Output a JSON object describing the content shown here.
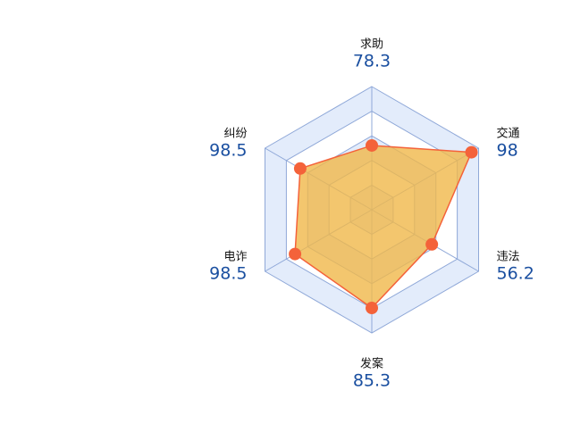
{
  "chart_data": {
    "type": "radar",
    "categories": [
      "求助",
      "交通",
      "违法",
      "发案",
      "电诈",
      "纠纷"
    ],
    "values": [
      78.3,
      98,
      56.2,
      85.3,
      98.5,
      98.5
    ],
    "max": [
      150,
      105,
      100,
      107,
      137,
      147
    ],
    "split_number": 5,
    "color": "#f4623a",
    "area_color": "#f0b84a"
  }
}
